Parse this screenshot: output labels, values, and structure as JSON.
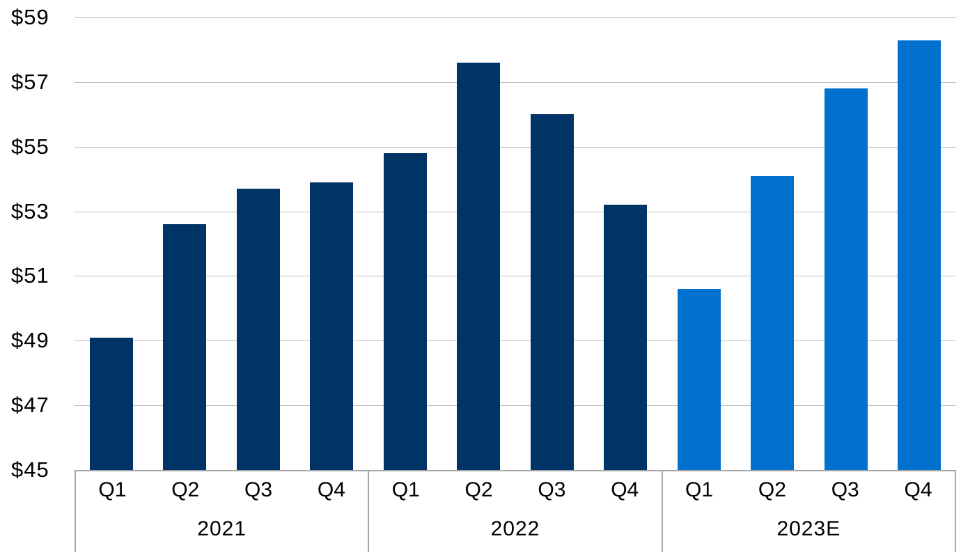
{
  "chart_data": {
    "type": "bar",
    "title": "",
    "xlabel": "",
    "ylabel": "",
    "ylim": [
      45,
      59
    ],
    "grid": true,
    "legend": "none",
    "y_ticks": [
      {
        "value": 45,
        "label": "$45"
      },
      {
        "value": 47,
        "label": "$47"
      },
      {
        "value": 49,
        "label": "$49"
      },
      {
        "value": 51,
        "label": "$51"
      },
      {
        "value": 53,
        "label": "$53"
      },
      {
        "value": 55,
        "label": "$55"
      },
      {
        "value": 57,
        "label": "$57"
      },
      {
        "value": 59,
        "label": "$59"
      }
    ],
    "groups": [
      {
        "label": "2021",
        "estimate": false,
        "quarters": [
          "Q1",
          "Q2",
          "Q3",
          "Q4"
        ],
        "values": [
          49.1,
          52.6,
          53.7,
          53.9
        ]
      },
      {
        "label": "2022",
        "estimate": false,
        "quarters": [
          "Q1",
          "Q2",
          "Q3",
          "Q4"
        ],
        "values": [
          54.8,
          57.6,
          56.0,
          53.2
        ]
      },
      {
        "label": "2023E",
        "estimate": true,
        "quarters": [
          "Q1",
          "Q2",
          "Q3",
          "Q4"
        ],
        "values": [
          50.6,
          54.1,
          56.8,
          58.3
        ]
      }
    ],
    "colors": {
      "actual_bar": "#003366",
      "estimate_bar": "#0072CE",
      "gridline": "#BFBFBF",
      "axis_border": "#A6A6A6",
      "text": "#000000"
    }
  }
}
